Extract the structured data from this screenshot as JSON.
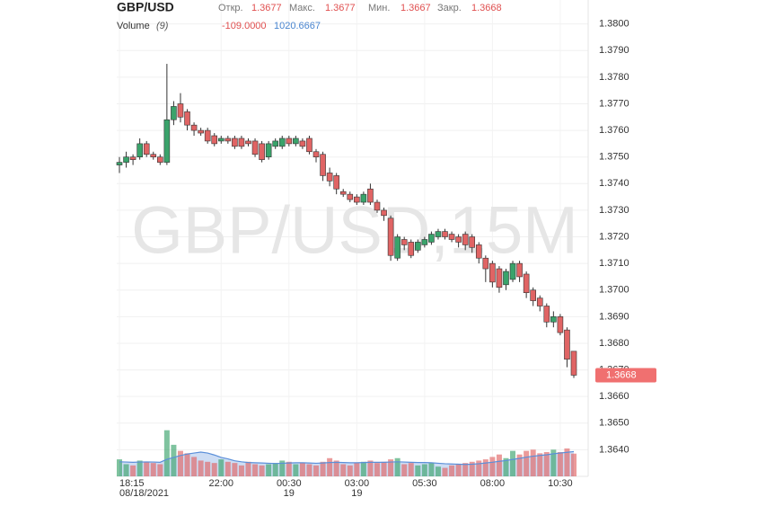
{
  "chart_data": {
    "type": "candlestick",
    "title": "GBP/USD",
    "watermark": "GBP/USD,15M",
    "header": {
      "labels": [
        "Откр.",
        "Макс.",
        "Мин.",
        "Закр."
      ],
      "values": [
        1.3677,
        1.3677,
        1.3667,
        1.3668
      ]
    },
    "volume_label": "Volume",
    "volume_period": "(9)",
    "volume_stats": [
      "-109.0000",
      "1020.6667"
    ],
    "categories": [
      "18:15",
      null,
      null,
      null,
      null,
      null,
      null,
      null,
      null,
      null,
      null,
      null,
      null,
      null,
      null,
      "22:00",
      null,
      null,
      null,
      null,
      null,
      null,
      null,
      null,
      null,
      "00:30",
      null,
      null,
      null,
      null,
      null,
      null,
      null,
      null,
      null,
      "03:00",
      null,
      null,
      null,
      null,
      null,
      null,
      null,
      null,
      null,
      "05:30",
      null,
      null,
      null,
      null,
      null,
      null,
      null,
      null,
      null,
      "08:00",
      null,
      null,
      null,
      null,
      null,
      null,
      null,
      null,
      null,
      "10:30",
      null,
      null
    ],
    "category_sublabels": [
      "08/18/2021",
      null,
      null,
      null,
      null,
      null,
      null,
      null,
      null,
      null,
      null,
      null,
      null,
      null,
      null,
      null,
      null,
      null,
      null,
      null,
      null,
      null,
      null,
      null,
      null,
      "19",
      null,
      null,
      null,
      null,
      null,
      null,
      null,
      null,
      null,
      "19",
      null,
      null,
      null,
      null,
      null,
      null,
      null,
      null,
      null,
      null,
      null,
      null,
      null,
      null,
      null,
      null,
      null,
      null,
      null,
      null,
      null,
      null,
      null,
      null,
      null,
      null,
      null,
      null,
      null,
      null,
      null,
      null
    ],
    "open": [
      1.3747,
      1.3748,
      1.375,
      1.375,
      1.3755,
      1.3751,
      1.375,
      1.3748,
      1.3764,
      1.377,
      1.3767,
      1.3762,
      1.376,
      1.376,
      1.3758,
      1.3756,
      1.3757,
      1.3757,
      1.3757,
      1.3756,
      1.3756,
      1.3755,
      1.375,
      1.3754,
      1.3754,
      1.3757,
      1.3755,
      1.3756,
      1.3757,
      1.3752,
      1.3751,
      1.3744,
      1.3743,
      1.3737,
      1.3736,
      1.3735,
      1.3733,
      1.3738,
      1.3733,
      1.373,
      1.3727,
      1.3712,
      1.3719,
      1.3718,
      1.3715,
      1.3717,
      1.3718,
      1.372,
      1.3722,
      1.3721,
      1.372,
      1.3721,
      1.372,
      1.3717,
      1.3712,
      1.371,
      1.3708,
      1.3702,
      1.3704,
      1.371,
      1.3706,
      1.37,
      1.3697,
      1.3694,
      1.3688,
      1.369,
      1.3685,
      1.3677
    ],
    "high": [
      1.375,
      1.3752,
      1.3751,
      1.3757,
      1.3756,
      1.3752,
      1.3751,
      1.3785,
      1.3771,
      1.3774,
      1.3768,
      1.3763,
      1.3761,
      1.3761,
      1.3759,
      1.3758,
      1.3758,
      1.3758,
      1.3758,
      1.3757,
      1.3757,
      1.3756,
      1.3756,
      1.3757,
      1.3758,
      1.3758,
      1.3758,
      1.3757,
      1.3758,
      1.3753,
      1.3752,
      1.3746,
      1.3744,
      1.3738,
      1.3737,
      1.3736,
      1.3737,
      1.374,
      1.3734,
      1.3731,
      1.3728,
      1.3721,
      1.372,
      1.3719,
      1.3719,
      1.372,
      1.3722,
      1.3723,
      1.3723,
      1.3722,
      1.3721,
      1.3722,
      1.3721,
      1.3718,
      1.3713,
      1.3711,
      1.3709,
      1.3708,
      1.3711,
      1.3711,
      1.3707,
      1.3701,
      1.3698,
      1.3695,
      1.3692,
      1.3691,
      1.3686,
      1.3677
    ],
    "low": [
      1.3744,
      1.3746,
      1.3747,
      1.3749,
      1.375,
      1.3749,
      1.3747,
      1.3747,
      1.3762,
      1.3763,
      1.376,
      1.3758,
      1.3758,
      1.3755,
      1.3754,
      1.3755,
      1.3755,
      1.3753,
      1.3753,
      1.3754,
      1.375,
      1.3748,
      1.3749,
      1.3753,
      1.3753,
      1.3754,
      1.3754,
      1.3753,
      1.3751,
      1.3748,
      1.3741,
      1.3739,
      1.3736,
      1.3735,
      1.3733,
      1.3732,
      1.3732,
      1.3732,
      1.3729,
      1.3726,
      1.3711,
      1.3711,
      1.3715,
      1.3712,
      1.3714,
      1.3716,
      1.3717,
      1.3719,
      1.3719,
      1.3718,
      1.3716,
      1.3715,
      1.3714,
      1.371,
      1.3703,
      1.3701,
      1.3699,
      1.37,
      1.3703,
      1.3703,
      1.3697,
      1.3694,
      1.3692,
      1.3686,
      1.3686,
      1.3683,
      1.3671,
      1.3667
    ],
    "close": [
      1.3748,
      1.375,
      1.3749,
      1.3755,
      1.3751,
      1.375,
      1.3748,
      1.3764,
      1.3769,
      1.3765,
      1.3762,
      1.376,
      1.3759,
      1.3756,
      1.3755,
      1.3757,
      1.3756,
      1.3754,
      1.3754,
      1.3755,
      1.3751,
      1.3749,
      1.3755,
      1.3756,
      1.3757,
      1.3755,
      1.3757,
      1.3754,
      1.3752,
      1.375,
      1.3743,
      1.3741,
      1.3738,
      1.3736,
      1.3734,
      1.3733,
      1.3736,
      1.3733,
      1.373,
      1.3728,
      1.3713,
      1.372,
      1.3717,
      1.3713,
      1.3718,
      1.3719,
      1.3721,
      1.3722,
      1.372,
      1.3719,
      1.3718,
      1.3717,
      1.3716,
      1.3712,
      1.3708,
      1.3703,
      1.3701,
      1.3707,
      1.371,
      1.3705,
      1.3699,
      1.3696,
      1.3694,
      1.3688,
      1.369,
      1.3684,
      1.3674,
      1.3668
    ],
    "volume": [
      700,
      500,
      450,
      650,
      600,
      550,
      500,
      1900,
      1300,
      1050,
      950,
      800,
      650,
      600,
      550,
      700,
      600,
      550,
      450,
      600,
      500,
      450,
      500,
      550,
      650,
      600,
      500,
      550,
      500,
      450,
      600,
      750,
      650,
      500,
      450,
      550,
      600,
      650,
      550,
      600,
      700,
      750,
      500,
      550,
      450,
      500,
      550,
      400,
      350,
      450,
      500,
      550,
      600,
      650,
      700,
      800,
      900,
      750,
      1050,
      900,
      1050,
      1100,
      950,
      1000,
      1100,
      1000,
      1150,
      936
    ],
    "volume_ma": [
      600,
      590,
      580,
      590,
      595,
      590,
      580,
      700,
      780,
      860,
      920,
      960,
      1000,
      960,
      880,
      780,
      720,
      640,
      600,
      570,
      560,
      550,
      540,
      530,
      540,
      550,
      560,
      560,
      550,
      540,
      550,
      570,
      580,
      570,
      560,
      560,
      570,
      580,
      580,
      580,
      590,
      600,
      590,
      580,
      570,
      570,
      560,
      540,
      520,
      510,
      500,
      490,
      500,
      520,
      550,
      580,
      620,
      650,
      700,
      740,
      790,
      830,
      860,
      890,
      930,
      960,
      990,
      1020.6667
    ],
    "up_color": "#3aa36b",
    "down_color": "#e06464",
    "volume_ma_color": "#5b8fd9",
    "ylim": [
      1.363,
      1.3809
    ],
    "yticks": [
      {
        "value": 1.38,
        "label": "1.3800"
      },
      {
        "value": 1.379,
        "label": "1.3790"
      },
      {
        "value": 1.378,
        "label": "1.3780"
      },
      {
        "value": 1.377,
        "label": "1.3770"
      },
      {
        "value": 1.376,
        "label": "1.3760"
      },
      {
        "value": 1.375,
        "label": "1.3750"
      },
      {
        "value": 1.374,
        "label": "1.3740"
      },
      {
        "value": 1.373,
        "label": "1.3730"
      },
      {
        "value": 1.372,
        "label": "1.3720"
      },
      {
        "value": 1.371,
        "label": "1.3710"
      },
      {
        "value": 1.37,
        "label": "1.3700"
      },
      {
        "value": 1.369,
        "label": "1.3690"
      },
      {
        "value": 1.368,
        "label": "1.3680"
      },
      {
        "value": 1.367,
        "label": "1.3670"
      },
      {
        "value": 1.366,
        "label": "1.3660"
      },
      {
        "value": 1.365,
        "label": "1.3650"
      },
      {
        "value": 1.364,
        "label": "1.3640"
      }
    ],
    "grid": true
  }
}
